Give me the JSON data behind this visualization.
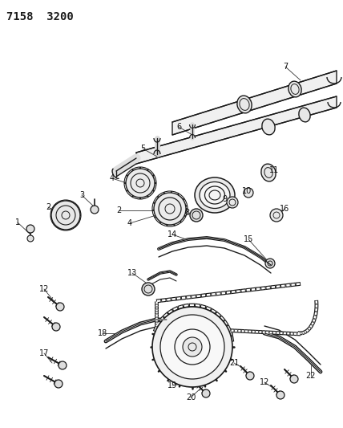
{
  "title": "7158  3200",
  "bg_color": "#ffffff",
  "line_color": "#1a1a1a",
  "label_color": "#111111",
  "label_fontsize": 7.0,
  "fig_width": 4.28,
  "fig_height": 5.33,
  "dpi": 100
}
